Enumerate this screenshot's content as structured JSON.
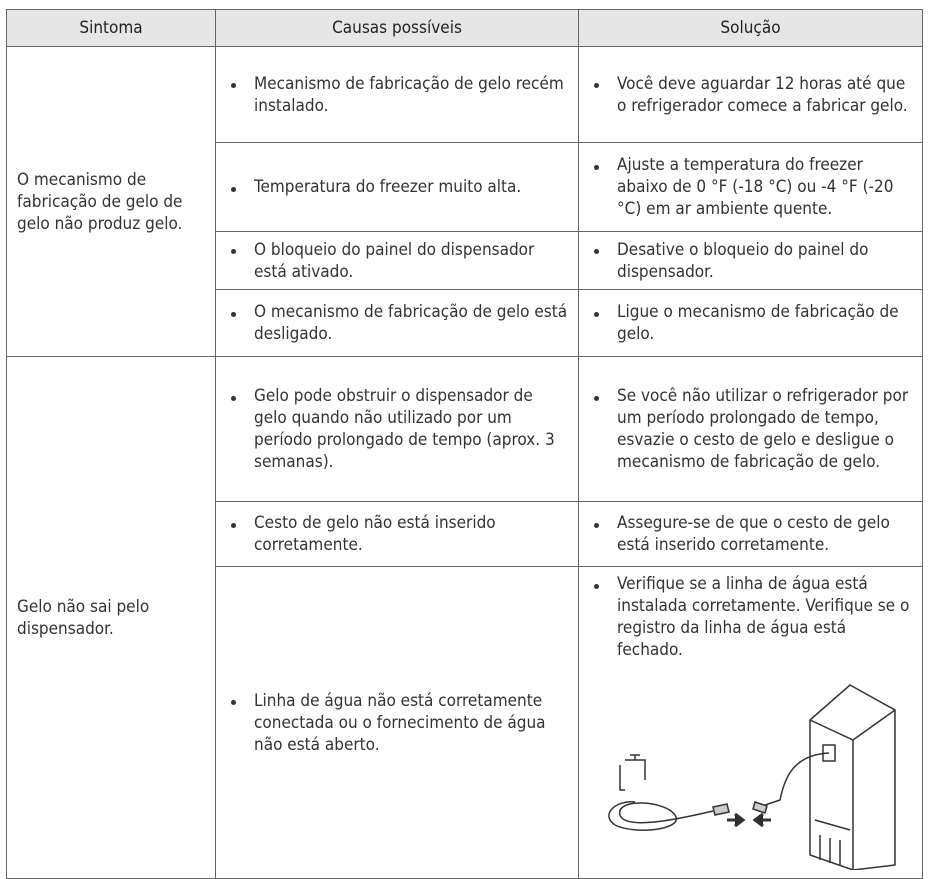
{
  "table": {
    "headers": [
      "Sintoma",
      "Causas possíveis",
      "Solução"
    ],
    "groups": [
      {
        "symptom": "O mecanismo de fabricação de gelo de gelo não produz gelo.",
        "rows": [
          {
            "cause": "Mecanismo de fabricação de gelo recém instalado.",
            "solution": "Você deve aguardar 12 horas até que o refrigerador comece a fabricar gelo."
          },
          {
            "cause": "Temperatura do freezer muito alta.",
            "solution": "Ajuste a temperatura do freezer abaixo de 0 °F (-18 °C) ou -4 °F (-20 °C) em ar ambiente quente."
          },
          {
            "cause": "O bloqueio do painel do dispensador está ativado.",
            "solution": "Desative o bloqueio do painel do dispensador."
          },
          {
            "cause": "O mecanismo de fabricação de gelo está desligado.",
            "solution": "Ligue o mecanismo de fabricação de gelo."
          }
        ]
      },
      {
        "symptom": "Gelo não sai pelo dispensador.",
        "rows": [
          {
            "cause": "Gelo pode obstruir o dispensador de gelo quando não utilizado por um período prolongado de tempo (aprox. 3 semanas).",
            "solution": "Se você não utilizar o refrigerador por um período prolongado de tempo, esvazie o cesto de gelo e desligue o mecanismo de fabricação de gelo."
          },
          {
            "cause": "Cesto de gelo não está inserido corretamente.",
            "solution": "Assegure-se de que o cesto de gelo está inserido corretamente."
          },
          {
            "cause": "Linha de água não está corretamente conectada ou o fornecimento de água não está aberto.",
            "solution": "Verifique se a linha de água está instalada corretamente. Verifique se o registro da linha de água está fechado."
          }
        ]
      }
    ]
  }
}
